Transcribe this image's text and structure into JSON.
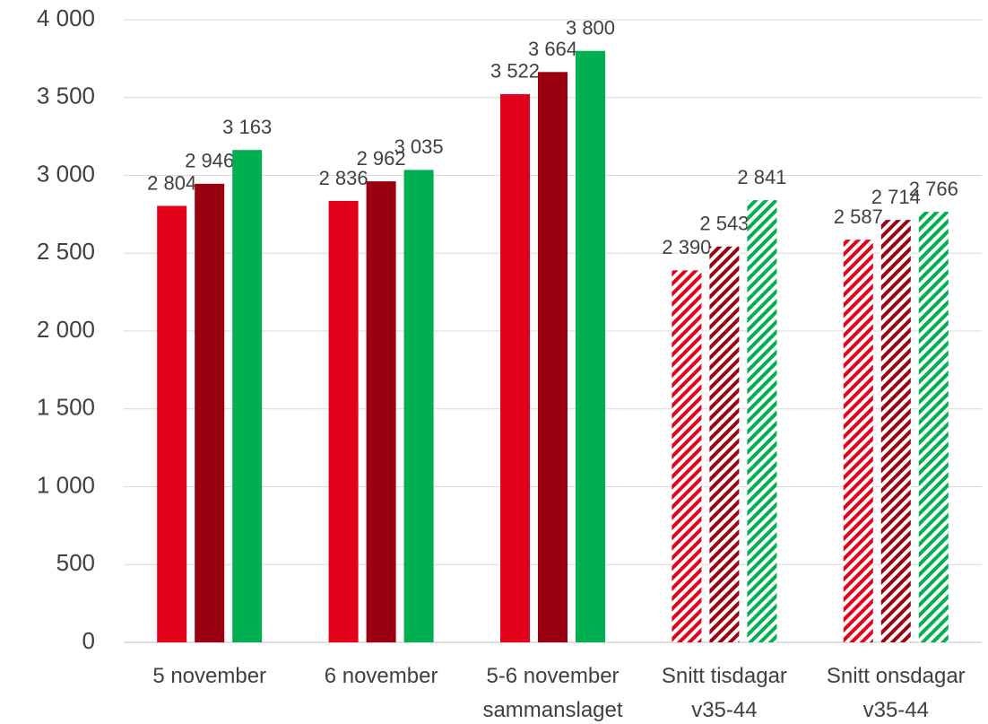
{
  "chart_data": {
    "type": "bar",
    "categories": [
      "5 november",
      "6 november",
      "5-6 november\nsammanslaget",
      "Snitt tisdagar\nv35-44",
      "Snitt onsdagar\nv35-44"
    ],
    "hatched": [
      false,
      false,
      false,
      true,
      true
    ],
    "series": [
      {
        "color": "#e2001a",
        "values": [
          2804,
          2836,
          3522,
          2390,
          2587
        ],
        "value_labels": [
          "2 804",
          "2 836",
          "3 522",
          "2 390",
          "2 587"
        ]
      },
      {
        "color": "#9a0010",
        "values": [
          2946,
          2962,
          3664,
          2543,
          2714
        ],
        "value_labels": [
          "2 946",
          "2 962",
          "3 664",
          "2 543",
          "2 714"
        ]
      },
      {
        "color": "#00b050",
        "values": [
          3163,
          3035,
          3800,
          2841,
          2766
        ],
        "value_labels": [
          "3 163",
          "3 035",
          "3 800",
          "2 841",
          "2 766"
        ]
      }
    ],
    "ylim": [
      0,
      4000
    ],
    "yticks": [
      0,
      500,
      {
        "value": 1000,
        "label": "1 000"
      },
      {
        "value": 1500,
        "label": "1 500"
      },
      {
        "value": 2000,
        "label": "2 000"
      },
      {
        "value": 2500,
        "label": "2 500"
      },
      {
        "value": 3000,
        "label": "3 000"
      },
      {
        "value": 3500,
        "label": "3 500"
      },
      {
        "value": 4000,
        "label": "4 000"
      }
    ],
    "grid": true
  }
}
